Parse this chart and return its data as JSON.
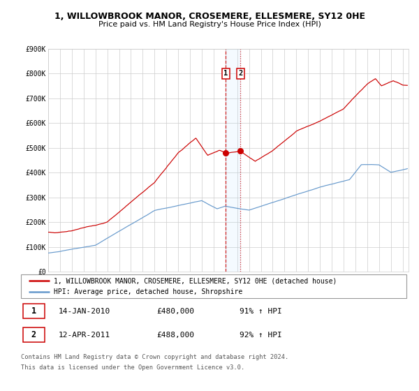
{
  "title": "1, WILLOWBROOK MANOR, CROSEMERE, ELLESMERE, SY12 0HE",
  "subtitle": "Price paid vs. HM Land Registry's House Price Index (HPI)",
  "legend_line1": "1, WILLOWBROOK MANOR, CROSEMERE, ELLESMERE, SY12 0HE (detached house)",
  "legend_line2": "HPI: Average price, detached house, Shropshire",
  "sale1_date": "14-JAN-2010",
  "sale1_price": "£480,000",
  "sale1_hpi": "91% ↑ HPI",
  "sale2_date": "12-APR-2011",
  "sale2_price": "£488,000",
  "sale2_hpi": "92% ↑ HPI",
  "footnote1": "Contains HM Land Registry data © Crown copyright and database right 2024.",
  "footnote2": "This data is licensed under the Open Government Licence v3.0.",
  "red_color": "#cc0000",
  "blue_color": "#6699cc",
  "sale1_date_num": 2010.04,
  "sale2_date_num": 2011.27,
  "sale1_price_val": 480000,
  "sale2_price_val": 488000,
  "ylim": [
    0,
    900000
  ],
  "xlim_start": 1995.0,
  "xlim_end": 2025.5
}
